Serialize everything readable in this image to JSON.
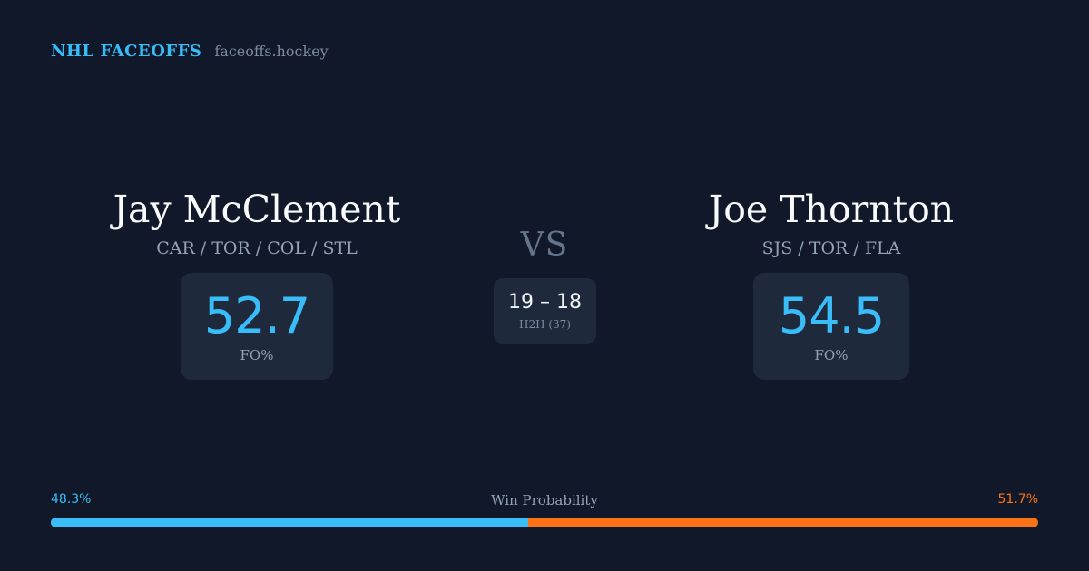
{
  "brand": {
    "title": "NHL FACEOFFS",
    "site": "faceoffs.hockey"
  },
  "players": [
    {
      "name": "Jay McClement",
      "teams": "CAR / TOR / COL / STL",
      "stat_value": "52.7",
      "stat_label": "FO%"
    },
    {
      "name": "Joe Thornton",
      "teams": "SJS / TOR / FLA",
      "stat_value": "54.5",
      "stat_label": "FO%"
    }
  ],
  "vs_label": "VS",
  "h2h": {
    "score": "19 – 18",
    "label": "H2H (37)"
  },
  "win_probability": {
    "title": "Win Probability",
    "left_label": "48.3%",
    "right_label": "51.7%",
    "left_fraction": 0.483,
    "right_fraction": 0.517
  },
  "colors": {
    "background": "#101829",
    "accent_blue": "#38bdf8",
    "accent_orange": "#f97316",
    "card": "#1e293b"
  }
}
